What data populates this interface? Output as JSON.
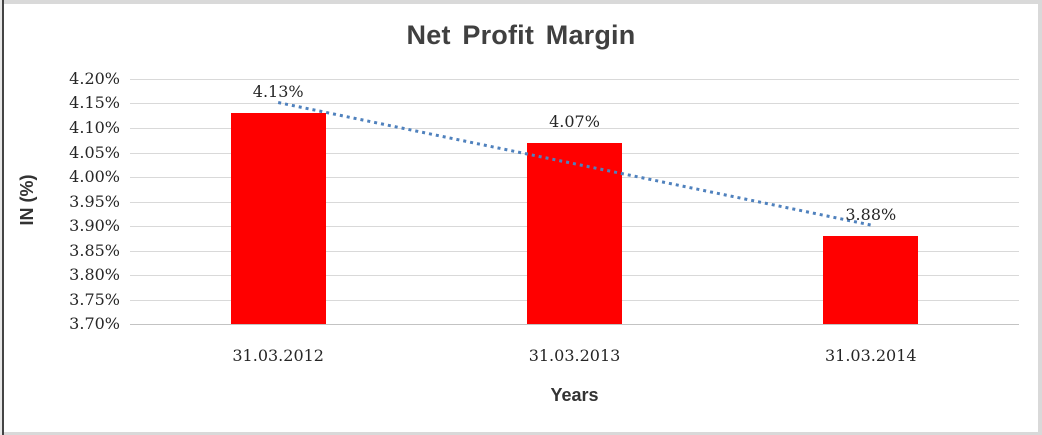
{
  "chart_data": {
    "type": "bar",
    "title": "Net Profit Margin",
    "categories": [
      "31.03.2012",
      "31.03.2013",
      "31.03.2014"
    ],
    "values": [
      4.13,
      4.07,
      3.88
    ],
    "data_labels": [
      "4.13%",
      "4.07%",
      "3.88%"
    ],
    "xlabel": "Years",
    "ylabel": "IN (%)",
    "ylim": [
      3.7,
      4.2
    ],
    "ytick_step": 0.05,
    "ytick_labels": [
      "4.20%",
      "4.15%",
      "4.10%",
      "4.05%",
      "4.00%",
      "3.95%",
      "3.90%",
      "3.85%",
      "3.80%",
      "3.75%",
      "3.70%"
    ],
    "grid": true,
    "legend": "none",
    "bar_color": "#ff0000",
    "gridline_color": "#d9d9d9",
    "title_color": "#404040",
    "label_color": "#262626",
    "trendline": {
      "type": "linear",
      "style": "dotted",
      "color": "#4f81bd",
      "start_value": 4.152,
      "end_value": 3.902
    }
  }
}
